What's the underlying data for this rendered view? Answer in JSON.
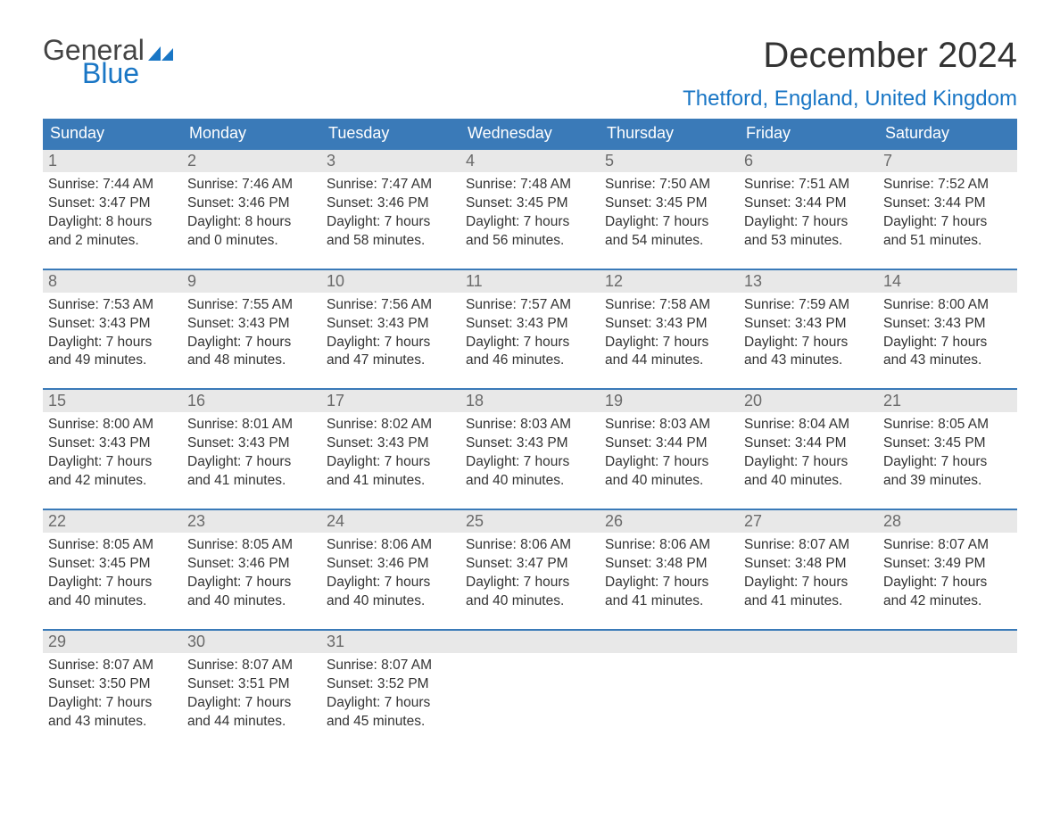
{
  "logo": {
    "text1": "General",
    "text2": "Blue",
    "flag_color": "#1976c5"
  },
  "title": "December 2024",
  "location": "Thetford, England, United Kingdom",
  "colors": {
    "header_bg": "#3a7ab8",
    "header_text": "#ffffff",
    "daynum_bg": "#e8e8e8",
    "daynum_text": "#6a6a6a",
    "body_text": "#333333",
    "accent": "#1976c5",
    "week_border": "#3a7ab8"
  },
  "typography": {
    "title_fontsize": 40,
    "location_fontsize": 24,
    "dow_fontsize": 18,
    "daynum_fontsize": 18,
    "body_fontsize": 15.5
  },
  "days_of_week": [
    "Sunday",
    "Monday",
    "Tuesday",
    "Wednesday",
    "Thursday",
    "Friday",
    "Saturday"
  ],
  "weeks": [
    [
      {
        "n": "1",
        "sunrise": "Sunrise: 7:44 AM",
        "sunset": "Sunset: 3:47 PM",
        "d1": "Daylight: 8 hours",
        "d2": "and 2 minutes."
      },
      {
        "n": "2",
        "sunrise": "Sunrise: 7:46 AM",
        "sunset": "Sunset: 3:46 PM",
        "d1": "Daylight: 8 hours",
        "d2": "and 0 minutes."
      },
      {
        "n": "3",
        "sunrise": "Sunrise: 7:47 AM",
        "sunset": "Sunset: 3:46 PM",
        "d1": "Daylight: 7 hours",
        "d2": "and 58 minutes."
      },
      {
        "n": "4",
        "sunrise": "Sunrise: 7:48 AM",
        "sunset": "Sunset: 3:45 PM",
        "d1": "Daylight: 7 hours",
        "d2": "and 56 minutes."
      },
      {
        "n": "5",
        "sunrise": "Sunrise: 7:50 AM",
        "sunset": "Sunset: 3:45 PM",
        "d1": "Daylight: 7 hours",
        "d2": "and 54 minutes."
      },
      {
        "n": "6",
        "sunrise": "Sunrise: 7:51 AM",
        "sunset": "Sunset: 3:44 PM",
        "d1": "Daylight: 7 hours",
        "d2": "and 53 minutes."
      },
      {
        "n": "7",
        "sunrise": "Sunrise: 7:52 AM",
        "sunset": "Sunset: 3:44 PM",
        "d1": "Daylight: 7 hours",
        "d2": "and 51 minutes."
      }
    ],
    [
      {
        "n": "8",
        "sunrise": "Sunrise: 7:53 AM",
        "sunset": "Sunset: 3:43 PM",
        "d1": "Daylight: 7 hours",
        "d2": "and 49 minutes."
      },
      {
        "n": "9",
        "sunrise": "Sunrise: 7:55 AM",
        "sunset": "Sunset: 3:43 PM",
        "d1": "Daylight: 7 hours",
        "d2": "and 48 minutes."
      },
      {
        "n": "10",
        "sunrise": "Sunrise: 7:56 AM",
        "sunset": "Sunset: 3:43 PM",
        "d1": "Daylight: 7 hours",
        "d2": "and 47 minutes."
      },
      {
        "n": "11",
        "sunrise": "Sunrise: 7:57 AM",
        "sunset": "Sunset: 3:43 PM",
        "d1": "Daylight: 7 hours",
        "d2": "and 46 minutes."
      },
      {
        "n": "12",
        "sunrise": "Sunrise: 7:58 AM",
        "sunset": "Sunset: 3:43 PM",
        "d1": "Daylight: 7 hours",
        "d2": "and 44 minutes."
      },
      {
        "n": "13",
        "sunrise": "Sunrise: 7:59 AM",
        "sunset": "Sunset: 3:43 PM",
        "d1": "Daylight: 7 hours",
        "d2": "and 43 minutes."
      },
      {
        "n": "14",
        "sunrise": "Sunrise: 8:00 AM",
        "sunset": "Sunset: 3:43 PM",
        "d1": "Daylight: 7 hours",
        "d2": "and 43 minutes."
      }
    ],
    [
      {
        "n": "15",
        "sunrise": "Sunrise: 8:00 AM",
        "sunset": "Sunset: 3:43 PM",
        "d1": "Daylight: 7 hours",
        "d2": "and 42 minutes."
      },
      {
        "n": "16",
        "sunrise": "Sunrise: 8:01 AM",
        "sunset": "Sunset: 3:43 PM",
        "d1": "Daylight: 7 hours",
        "d2": "and 41 minutes."
      },
      {
        "n": "17",
        "sunrise": "Sunrise: 8:02 AM",
        "sunset": "Sunset: 3:43 PM",
        "d1": "Daylight: 7 hours",
        "d2": "and 41 minutes."
      },
      {
        "n": "18",
        "sunrise": "Sunrise: 8:03 AM",
        "sunset": "Sunset: 3:43 PM",
        "d1": "Daylight: 7 hours",
        "d2": "and 40 minutes."
      },
      {
        "n": "19",
        "sunrise": "Sunrise: 8:03 AM",
        "sunset": "Sunset: 3:44 PM",
        "d1": "Daylight: 7 hours",
        "d2": "and 40 minutes."
      },
      {
        "n": "20",
        "sunrise": "Sunrise: 8:04 AM",
        "sunset": "Sunset: 3:44 PM",
        "d1": "Daylight: 7 hours",
        "d2": "and 40 minutes."
      },
      {
        "n": "21",
        "sunrise": "Sunrise: 8:05 AM",
        "sunset": "Sunset: 3:45 PM",
        "d1": "Daylight: 7 hours",
        "d2": "and 39 minutes."
      }
    ],
    [
      {
        "n": "22",
        "sunrise": "Sunrise: 8:05 AM",
        "sunset": "Sunset: 3:45 PM",
        "d1": "Daylight: 7 hours",
        "d2": "and 40 minutes."
      },
      {
        "n": "23",
        "sunrise": "Sunrise: 8:05 AM",
        "sunset": "Sunset: 3:46 PM",
        "d1": "Daylight: 7 hours",
        "d2": "and 40 minutes."
      },
      {
        "n": "24",
        "sunrise": "Sunrise: 8:06 AM",
        "sunset": "Sunset: 3:46 PM",
        "d1": "Daylight: 7 hours",
        "d2": "and 40 minutes."
      },
      {
        "n": "25",
        "sunrise": "Sunrise: 8:06 AM",
        "sunset": "Sunset: 3:47 PM",
        "d1": "Daylight: 7 hours",
        "d2": "and 40 minutes."
      },
      {
        "n": "26",
        "sunrise": "Sunrise: 8:06 AM",
        "sunset": "Sunset: 3:48 PM",
        "d1": "Daylight: 7 hours",
        "d2": "and 41 minutes."
      },
      {
        "n": "27",
        "sunrise": "Sunrise: 8:07 AM",
        "sunset": "Sunset: 3:48 PM",
        "d1": "Daylight: 7 hours",
        "d2": "and 41 minutes."
      },
      {
        "n": "28",
        "sunrise": "Sunrise: 8:07 AM",
        "sunset": "Sunset: 3:49 PM",
        "d1": "Daylight: 7 hours",
        "d2": "and 42 minutes."
      }
    ],
    [
      {
        "n": "29",
        "sunrise": "Sunrise: 8:07 AM",
        "sunset": "Sunset: 3:50 PM",
        "d1": "Daylight: 7 hours",
        "d2": "and 43 minutes."
      },
      {
        "n": "30",
        "sunrise": "Sunrise: 8:07 AM",
        "sunset": "Sunset: 3:51 PM",
        "d1": "Daylight: 7 hours",
        "d2": "and 44 minutes."
      },
      {
        "n": "31",
        "sunrise": "Sunrise: 8:07 AM",
        "sunset": "Sunset: 3:52 PM",
        "d1": "Daylight: 7 hours",
        "d2": "and 45 minutes."
      },
      {
        "empty": true,
        "n": "",
        "sunrise": "",
        "sunset": "",
        "d1": "",
        "d2": ""
      },
      {
        "empty": true,
        "n": "",
        "sunrise": "",
        "sunset": "",
        "d1": "",
        "d2": ""
      },
      {
        "empty": true,
        "n": "",
        "sunrise": "",
        "sunset": "",
        "d1": "",
        "d2": ""
      },
      {
        "empty": true,
        "n": "",
        "sunrise": "",
        "sunset": "",
        "d1": "",
        "d2": ""
      }
    ]
  ]
}
